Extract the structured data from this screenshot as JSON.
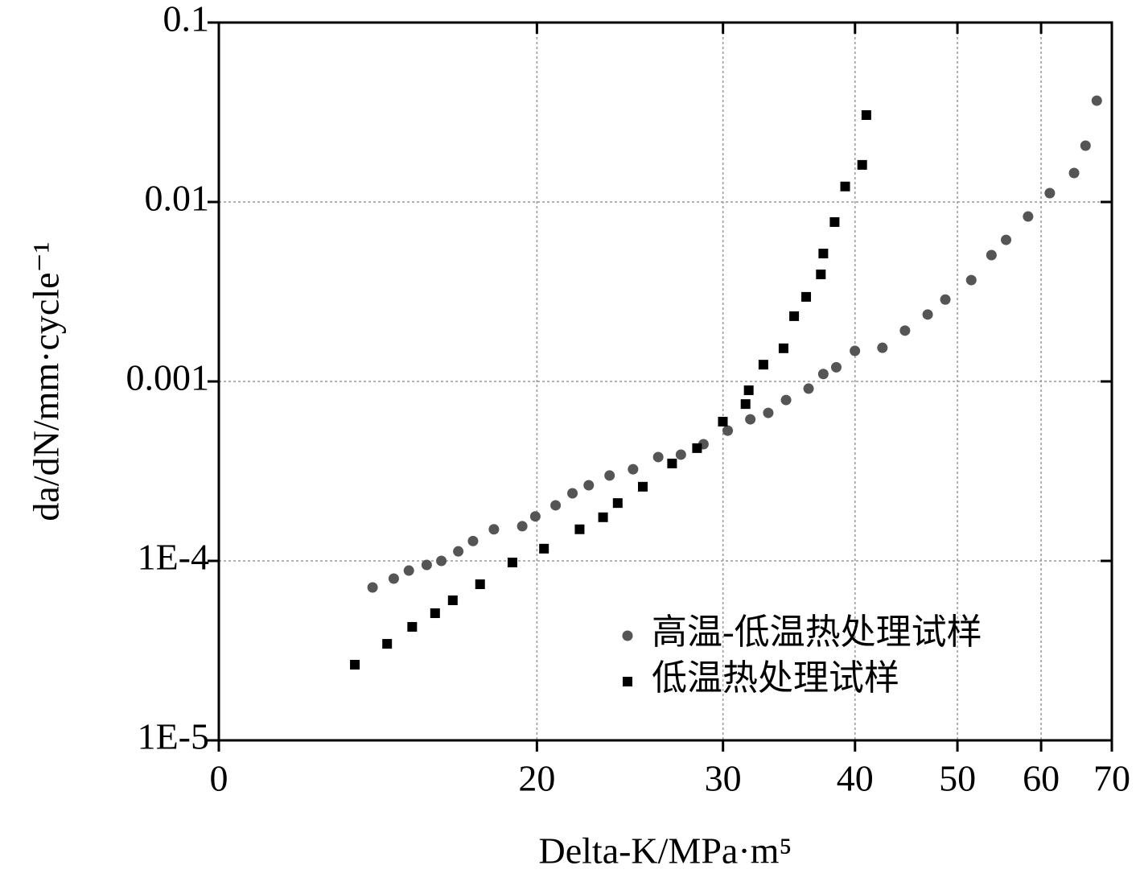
{
  "chart_data": {
    "type": "scatter",
    "x_label": "Delta-K/MPa·m⁵",
    "y_label": "da/dN/mm·cycle⁻¹",
    "xscale": "log",
    "yscale": "log",
    "xlim": [
      10,
      70
    ],
    "ylim": [
      1e-05,
      0.1
    ],
    "xticks": [
      {
        "value": 10,
        "label": "0"
      },
      20,
      30,
      40,
      50,
      60,
      70
    ],
    "yticks": [
      {
        "value": 1e-05,
        "label": "1E-5"
      },
      {
        "value": 0.0001,
        "label": "1E-4"
      },
      0.001,
      0.01,
      0.1
    ],
    "grid": true,
    "legend": "lower right",
    "series": [
      {
        "name": "高温-低温热处理试样",
        "color": "#555555",
        "marker": "circle",
        "x": [
          13.98,
          14.64,
          15.13,
          15.73,
          16.24,
          16.85,
          17.4,
          18.21,
          19.37,
          19.93,
          20.83,
          21.61,
          22.39,
          23.43,
          24.66,
          26.05,
          27.37,
          28.75,
          30.31,
          31.84,
          33.11,
          34.42,
          36.15,
          37.33,
          38.4,
          39.99,
          42.46,
          44.6,
          46.86,
          48.7,
          51.53,
          53.85,
          55.59,
          58.32,
          61.15,
          64.47,
          66.1,
          67.74
        ],
        "values": [
          7.11e-05,
          7.97e-05,
          8.83e-05,
          9.5e-05,
          0.0001,
          0.000113,
          0.000129,
          0.00015,
          0.000156,
          0.000177,
          0.000204,
          0.000238,
          0.000264,
          0.000299,
          0.000324,
          0.000379,
          0.000391,
          0.000447,
          0.000532,
          0.000615,
          0.000668,
          0.000788,
          0.000912,
          0.0011,
          0.0012,
          0.00148,
          0.00154,
          0.00192,
          0.00236,
          0.00286,
          0.00367,
          0.00506,
          0.00615,
          0.0083,
          0.0112,
          0.0145,
          0.0206,
          0.0367
        ]
      },
      {
        "name": "低温热处理试样",
        "color": "#000000",
        "marker": "square",
        "x": [
          13.45,
          14.43,
          15.24,
          16.02,
          16.65,
          17.67,
          18.96,
          20.31,
          21.95,
          23.1,
          23.85,
          25.19,
          26.85,
          28.35,
          29.99,
          31.51,
          31.73,
          32.76,
          34.23,
          35.03,
          35.96,
          37.13,
          37.33,
          38.26,
          39.15,
          40.63,
          41.0
        ],
        "values": [
          2.64e-05,
          3.45e-05,
          4.29e-05,
          5.11e-05,
          6.03e-05,
          7.41e-05,
          9.8e-05,
          0.000117,
          0.00015,
          0.000175,
          0.00021,
          0.000259,
          0.000349,
          0.000425,
          0.000597,
          0.000748,
          0.000893,
          0.00124,
          0.00153,
          0.00231,
          0.00296,
          0.00395,
          0.00516,
          0.00773,
          0.0122,
          0.0161,
          0.0305
        ]
      }
    ]
  }
}
